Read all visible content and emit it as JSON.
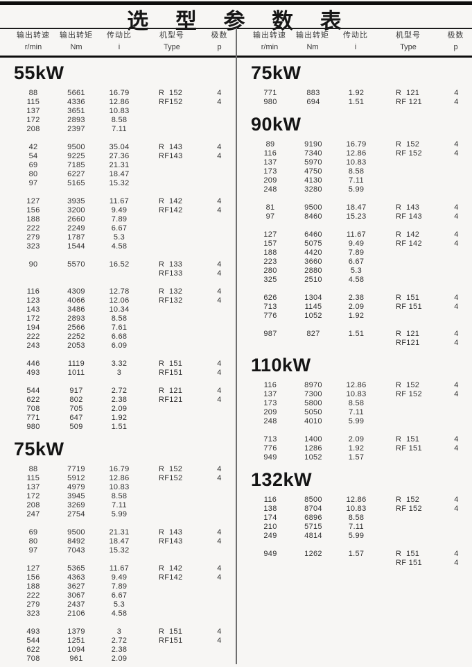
{
  "page": {
    "title": "选 型 参 数 表"
  },
  "headers": [
    {
      "name": "输出转速",
      "unit": "r/min"
    },
    {
      "name": "输出转矩",
      "unit": "Nm"
    },
    {
      "name": "传动比",
      "unit": "i"
    },
    {
      "name": "机型号",
      "unit": "Type"
    },
    {
      "name": "极数",
      "unit": "p"
    }
  ],
  "columns": {
    "left": {
      "sections": [
        {
          "title": "55kW",
          "groups": [
            [
              [
                "88",
                "5661",
                "16.79",
                "R  152",
                "4"
              ],
              [
                "115",
                "4336",
                "12.86",
                "RF152",
                "4"
              ],
              [
                "137",
                "3651",
                "10.83",
                "",
                ""
              ],
              [
                "172",
                "2893",
                "8.58",
                "",
                ""
              ],
              [
                "208",
                "2397",
                "7.11",
                "",
                ""
              ]
            ],
            [
              [
                "42",
                "9500",
                "35.04",
                "R  143",
                "4"
              ],
              [
                "54",
                "9225",
                "27.36",
                "RF143",
                "4"
              ],
              [
                "69",
                "7185",
                "21.31",
                "",
                ""
              ],
              [
                "80",
                "6227",
                "18.47",
                "",
                ""
              ],
              [
                "97",
                "5165",
                "15.32",
                "",
                ""
              ]
            ],
            [
              [
                "127",
                "3935",
                "11.67",
                "R  142",
                "4"
              ],
              [
                "156",
                "3200",
                "9.49",
                "RF142",
                "4"
              ],
              [
                "188",
                "2660",
                "7.89",
                "",
                ""
              ],
              [
                "222",
                "2249",
                "6.67",
                "",
                ""
              ],
              [
                "279",
                "1787",
                "5.3",
                "",
                ""
              ],
              [
                "323",
                "1544",
                "4.58",
                "",
                ""
              ]
            ],
            [
              [
                "90",
                "5570",
                "16.52",
                "R  133",
                "4"
              ],
              [
                "",
                "",
                "",
                "RF133",
                "4"
              ]
            ],
            [
              [
                "116",
                "4309",
                "12.78",
                "R  132",
                "4"
              ],
              [
                "123",
                "4066",
                "12.06",
                "RF132",
                "4"
              ],
              [
                "143",
                "3486",
                "10.34",
                "",
                ""
              ],
              [
                "172",
                "2893",
                "8.58",
                "",
                ""
              ],
              [
                "194",
                "2566",
                "7.61",
                "",
                ""
              ],
              [
                "222",
                "2252",
                "6.68",
                "",
                ""
              ],
              [
                "243",
                "2053",
                "6.09",
                "",
                ""
              ]
            ],
            [
              [
                "446",
                "1119",
                "3.32",
                "R  151",
                "4"
              ],
              [
                "493",
                "1011",
                "3",
                "RF151",
                "4"
              ]
            ],
            [
              [
                "544",
                "917",
                "2.72",
                "R  121",
                "4"
              ],
              [
                "622",
                "802",
                "2.38",
                "RF121",
                "4"
              ],
              [
                "708",
                "705",
                "2.09",
                "",
                ""
              ],
              [
                "771",
                "647",
                "1.92",
                "",
                ""
              ],
              [
                "980",
                "509",
                "1.51",
                "",
                ""
              ]
            ]
          ]
        },
        {
          "title": "75kW",
          "groups": [
            [
              [
                "88",
                "7719",
                "16.79",
                "R  152",
                "4"
              ],
              [
                "115",
                "5912",
                "12.86",
                "RF152",
                "4"
              ],
              [
                "137",
                "4979",
                "10.83",
                "",
                ""
              ],
              [
                "172",
                "3945",
                "8.58",
                "",
                ""
              ],
              [
                "208",
                "3269",
                "7.11",
                "",
                ""
              ],
              [
                "247",
                "2754",
                "5.99",
                "",
                ""
              ]
            ],
            [
              [
                "69",
                "9500",
                "21.31",
                "R  143",
                "4"
              ],
              [
                "80",
                "8492",
                "18.47",
                "RF143",
                "4"
              ],
              [
                "97",
                "7043",
                "15.32",
                "",
                ""
              ]
            ],
            [
              [
                "127",
                "5365",
                "11.67",
                "R  142",
                "4"
              ],
              [
                "156",
                "4363",
                "9.49",
                "RF142",
                "4"
              ],
              [
                "188",
                "3627",
                "7.89",
                "",
                ""
              ],
              [
                "222",
                "3067",
                "6.67",
                "",
                ""
              ],
              [
                "279",
                "2437",
                "5.3",
                "",
                ""
              ],
              [
                "323",
                "2106",
                "4.58",
                "",
                ""
              ]
            ],
            [
              [
                "493",
                "1379",
                "3",
                "R  151",
                "4"
              ],
              [
                "544",
                "1251",
                "2.72",
                "RF151",
                "4"
              ],
              [
                "622",
                "1094",
                "2.38",
                "",
                ""
              ],
              [
                "708",
                "961",
                "2.09",
                "",
                ""
              ]
            ]
          ]
        }
      ]
    },
    "right": {
      "sections": [
        {
          "title": "75kW",
          "groups": [
            [
              [
                "771",
                "883",
                "1.92",
                "R  121",
                "4"
              ],
              [
                "980",
                "694",
                "1.51",
                "RF 121",
                "4"
              ]
            ]
          ]
        },
        {
          "title": "90kW",
          "groups": [
            [
              [
                "89",
                "9190",
                "16.79",
                "R  152",
                "4"
              ],
              [
                "116",
                "7340",
                "12.86",
                "RF 152",
                "4"
              ],
              [
                "137",
                "5970",
                "10.83",
                "",
                ""
              ],
              [
                "173",
                "4750",
                "8.58",
                "",
                ""
              ],
              [
                "209",
                "4130",
                "7.11",
                "",
                ""
              ],
              [
                "248",
                "3280",
                "5.99",
                "",
                ""
              ]
            ],
            [
              [
                "81",
                "9500",
                "18.47",
                "R  143",
                "4"
              ],
              [
                "97",
                "8460",
                "15.23",
                "RF 143",
                "4"
              ]
            ],
            [
              [
                "127",
                "6460",
                "11.67",
                "R  142",
                "4"
              ],
              [
                "157",
                "5075",
                "9.49",
                "RF 142",
                "4"
              ],
              [
                "188",
                "4420",
                "7.89",
                "",
                ""
              ],
              [
                "223",
                "3660",
                "6.67",
                "",
                ""
              ],
              [
                "280",
                "2880",
                "5.3",
                "",
                ""
              ],
              [
                "325",
                "2510",
                "4.58",
                "",
                ""
              ]
            ],
            [
              [
                "626",
                "1304",
                "2.38",
                "R  151",
                "4"
              ],
              [
                "713",
                "1145",
                "2.09",
                "RF 151",
                "4"
              ],
              [
                "776",
                "1052",
                "1.92",
                "",
                ""
              ]
            ],
            [
              [
                "987",
                "827",
                "1.51",
                "R  121",
                "4"
              ],
              [
                "",
                "",
                "",
                "RF121",
                "4"
              ]
            ]
          ]
        },
        {
          "title": "110kW",
          "groups": [
            [
              [
                "116",
                "8970",
                "12.86",
                "R  152",
                "4"
              ],
              [
                "137",
                "7300",
                "10.83",
                "RF 152",
                "4"
              ],
              [
                "173",
                "5800",
                "8.58",
                "",
                ""
              ],
              [
                "209",
                "5050",
                "7.11",
                "",
                ""
              ],
              [
                "248",
                "4010",
                "5.99",
                "",
                ""
              ]
            ],
            [
              [
                "713",
                "1400",
                "2.09",
                "R  151",
                "4"
              ],
              [
                "776",
                "1286",
                "1.92",
                "RF 151",
                "4"
              ],
              [
                "949",
                "1052",
                "1.57",
                "",
                ""
              ]
            ]
          ]
        },
        {
          "title": "132kW",
          "groups": [
            [
              [
                "116",
                "8500",
                "12.86",
                "R  152",
                "4"
              ],
              [
                "138",
                "8704",
                "10.83",
                "RF 152",
                "4"
              ],
              [
                "174",
                "6896",
                "8.58",
                "",
                ""
              ],
              [
                "210",
                "5715",
                "7.11",
                "",
                ""
              ],
              [
                "249",
                "4814",
                "5.99",
                "",
                ""
              ]
            ],
            [
              [
                "949",
                "1262",
                "1.57",
                "R  151",
                "4"
              ],
              [
                "",
                "",
                "",
                "RF 151",
                "4"
              ]
            ]
          ]
        }
      ]
    }
  }
}
